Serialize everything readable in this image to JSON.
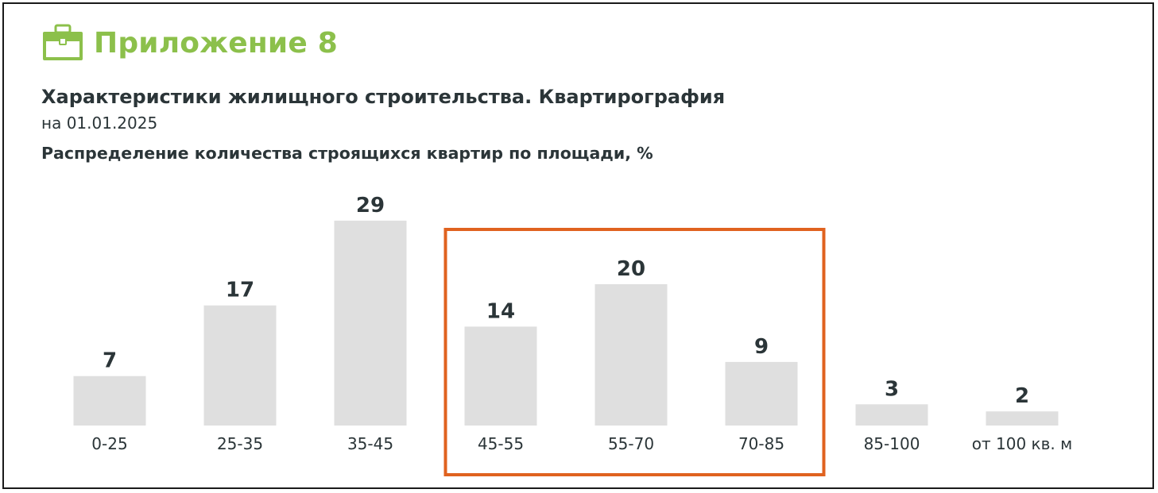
{
  "header": {
    "appendix_label": "Приложение 8",
    "icon": "briefcase-icon"
  },
  "title": "Характеристики жилищного строительства. Квартирография",
  "date": "на 01.01.2025",
  "subtitle": "Распределение количества строящихся квартир по площади, %",
  "colors": {
    "accent": "#8cc04b",
    "bar": "#dfdfdf",
    "text": "#2b3538",
    "highlight": "#e0621f"
  },
  "chart_data": {
    "type": "bar",
    "categories": [
      "0-25",
      "25-35",
      "35-45",
      "45-55",
      "55-70",
      "70-85",
      "85-100",
      "от 100 кв. м"
    ],
    "values": [
      7,
      17,
      29,
      14,
      20,
      9,
      3,
      2
    ],
    "title": "Распределение количества строящихся квартир по площади, %",
    "xlabel": "",
    "ylabel": "",
    "ylim": [
      0,
      29
    ],
    "grid": false,
    "highlighted_categories": [
      "45-55",
      "55-70",
      "70-85"
    ]
  }
}
